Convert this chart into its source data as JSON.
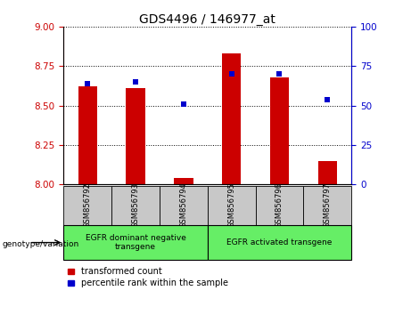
{
  "title": "GDS4496 / 146977_at",
  "samples": [
    "GSM856792",
    "GSM856793",
    "GSM856794",
    "GSM856795",
    "GSM856796",
    "GSM856797"
  ],
  "red_values": [
    8.62,
    8.61,
    8.04,
    8.83,
    8.68,
    8.15
  ],
  "blue_values": [
    64,
    65,
    51,
    70,
    70,
    54
  ],
  "ylim_left": [
    8.0,
    9.0
  ],
  "ylim_right": [
    0,
    100
  ],
  "yticks_left": [
    8.0,
    8.25,
    8.5,
    8.75,
    9.0
  ],
  "yticks_right": [
    0,
    25,
    50,
    75,
    100
  ],
  "group1_label": "EGFR dominant negative\ntransgene",
  "group2_label": "EGFR activated transgene",
  "genotype_label": "genotype/variation",
  "legend_red": "transformed count",
  "legend_blue": "percentile rank within the sample",
  "bar_color": "#cc0000",
  "dot_color": "#0000cc",
  "group_bg_color": "#66ee66",
  "sample_bg_color": "#c8c8c8",
  "left_axis_color": "#cc0000",
  "right_axis_color": "#0000cc",
  "bar_width": 0.4
}
